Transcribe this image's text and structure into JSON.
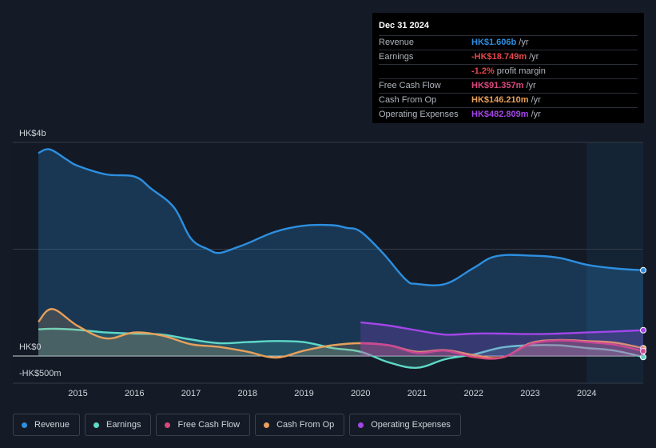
{
  "chart_data": {
    "type": "area",
    "currency": "HK$",
    "y_labels": {
      "top": "HK$4b",
      "zero": "HK$0",
      "bottom": "-HK$500m"
    },
    "ylim": [
      -500,
      4000
    ],
    "x_ticks": [
      "2015",
      "2016",
      "2017",
      "2018",
      "2019",
      "2020",
      "2021",
      "2022",
      "2023",
      "2024"
    ],
    "x_range": [
      2014.3,
      2025.0
    ],
    "forecast_start": 2024.0,
    "series": [
      {
        "name": "Revenue",
        "color": "#2d8fe0",
        "unit": "HK$m",
        "x": [
          2014.3,
          2014.5,
          2014.8,
          2015.0,
          2015.5,
          2016.0,
          2016.3,
          2016.7,
          2017.0,
          2017.3,
          2017.5,
          2017.8,
          2018.0,
          2018.5,
          2019.0,
          2019.5,
          2019.75,
          2020.0,
          2020.4,
          2020.8,
          2021.0,
          2021.5,
          2022.0,
          2022.4,
          2023.0,
          2023.5,
          2024.0,
          2024.5,
          2025.0
        ],
        "values": [
          3800,
          3870,
          3680,
          3560,
          3400,
          3360,
          3130,
          2780,
          2200,
          2000,
          1930,
          2030,
          2110,
          2330,
          2440,
          2450,
          2400,
          2330,
          1920,
          1430,
          1350,
          1350,
          1650,
          1870,
          1880,
          1840,
          1710,
          1640,
          1606
        ]
      },
      {
        "name": "Earnings",
        "color": "#5fd9c8",
        "unit": "HK$m",
        "x": [
          2014.3,
          2014.6,
          2015.0,
          2015.5,
          2016.0,
          2016.5,
          2017.0,
          2017.5,
          2018.0,
          2018.5,
          2019.0,
          2019.5,
          2020.0,
          2020.5,
          2021.0,
          2021.5,
          2022.0,
          2022.5,
          2023.0,
          2023.5,
          2024.0,
          2024.5,
          2025.0
        ],
        "values": [
          500,
          510,
          490,
          440,
          420,
          400,
          310,
          240,
          260,
          280,
          260,
          150,
          80,
          -120,
          -220,
          -60,
          30,
          160,
          200,
          200,
          150,
          100,
          -19
        ]
      },
      {
        "name": "Free Cash Flow",
        "color": "#d9497e",
        "unit": "HK$m",
        "x": [
          2020.0,
          2020.5,
          2021.0,
          2021.5,
          2022.0,
          2022.5,
          2023.0,
          2023.5,
          2024.0,
          2024.5,
          2025.0
        ],
        "values": [
          240,
          200,
          60,
          100,
          -20,
          -30,
          220,
          290,
          260,
          210,
          91
        ]
      },
      {
        "name": "Cash From Op",
        "color": "#e8a05a",
        "unit": "HK$m",
        "x": [
          2014.3,
          2014.55,
          2015.0,
          2015.5,
          2016.0,
          2016.5,
          2017.0,
          2017.5,
          2018.0,
          2018.5,
          2019.0,
          2019.5,
          2020.0,
          2020.5,
          2021.0,
          2021.5,
          2022.0,
          2022.5,
          2023.0,
          2023.5,
          2024.0,
          2024.5,
          2025.0
        ],
        "values": [
          640,
          880,
          560,
          330,
          440,
          380,
          220,
          170,
          80,
          -30,
          100,
          200,
          240,
          200,
          80,
          110,
          20,
          -30,
          240,
          300,
          280,
          250,
          146
        ]
      },
      {
        "name": "Operating Expenses",
        "color": "#a346e8",
        "unit": "HK$m",
        "x": [
          2020.0,
          2020.5,
          2021.0,
          2021.5,
          2022.0,
          2022.5,
          2023.0,
          2023.5,
          2024.0,
          2024.5,
          2025.0
        ],
        "values": [
          630,
          570,
          480,
          400,
          420,
          420,
          410,
          420,
          440,
          460,
          483
        ]
      }
    ]
  },
  "tooltip": {
    "date": "Dec 31 2024",
    "rows": [
      {
        "label": "Revenue",
        "value": "HK$1.606b",
        "unit": "/yr",
        "color": "#2d8fe0"
      },
      {
        "label": "Earnings",
        "value": "-HK$18.749m",
        "unit": "/yr",
        "color": "#e5474b"
      },
      {
        "label": "",
        "value": "-1.2%",
        "unit": "profit margin",
        "color": "#e5474b"
      },
      {
        "label": "Free Cash Flow",
        "value": "HK$91.357m",
        "unit": "/yr",
        "color": "#d9497e"
      },
      {
        "label": "Cash From Op",
        "value": "HK$146.210m",
        "unit": "/yr",
        "color": "#e8a05a"
      },
      {
        "label": "Operating Expenses",
        "value": "HK$482.809m",
        "unit": "/yr",
        "color": "#a346e8"
      }
    ]
  },
  "legend": [
    {
      "label": "Revenue",
      "color": "#2d8fe0"
    },
    {
      "label": "Earnings",
      "color": "#5fd9c8"
    },
    {
      "label": "Free Cash Flow",
      "color": "#d9497e"
    },
    {
      "label": "Cash From Op",
      "color": "#e8a05a"
    },
    {
      "label": "Operating Expenses",
      "color": "#a346e8"
    }
  ]
}
